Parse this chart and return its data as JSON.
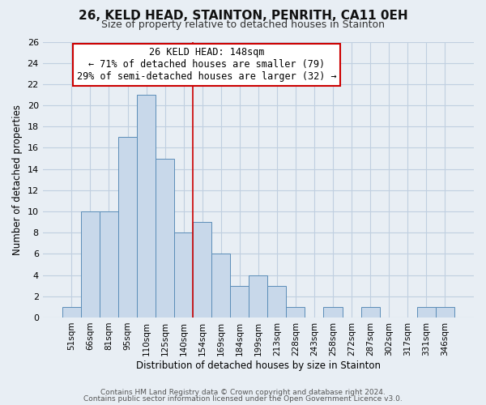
{
  "title": "26, KELD HEAD, STAINTON, PENRITH, CA11 0EH",
  "subtitle": "Size of property relative to detached houses in Stainton",
  "xlabel": "Distribution of detached houses by size in Stainton",
  "ylabel": "Number of detached properties",
  "bar_labels": [
    "51sqm",
    "66sqm",
    "81sqm",
    "95sqm",
    "110sqm",
    "125sqm",
    "140sqm",
    "154sqm",
    "169sqm",
    "184sqm",
    "199sqm",
    "213sqm",
    "228sqm",
    "243sqm",
    "258sqm",
    "272sqm",
    "287sqm",
    "302sqm",
    "317sqm",
    "331sqm",
    "346sqm"
  ],
  "bar_values": [
    1,
    10,
    10,
    17,
    21,
    15,
    8,
    9,
    6,
    3,
    4,
    3,
    1,
    0,
    1,
    0,
    1,
    0,
    0,
    1,
    1
  ],
  "bar_color": "#c8d8ea",
  "bar_edge_color": "#5b8db8",
  "ylim": [
    0,
    26
  ],
  "yticks": [
    0,
    2,
    4,
    6,
    8,
    10,
    12,
    14,
    16,
    18,
    20,
    22,
    24,
    26
  ],
  "annotation_title": "26 KELD HEAD: 148sqm",
  "annotation_line1": "← 71% of detached houses are smaller (79)",
  "annotation_line2": "29% of semi-detached houses are larger (32) →",
  "annotation_box_color": "#ffffff",
  "annotation_box_edge": "#cc0000",
  "marker_line_color": "#cc0000",
  "marker_bar_index": 6,
  "footer_line1": "Contains HM Land Registry data © Crown copyright and database right 2024.",
  "footer_line2": "Contains public sector information licensed under the Open Government Licence v3.0.",
  "background_color": "#e8eef4",
  "plot_background_color": "#e8eef4",
  "grid_color": "#c0cfe0",
  "title_fontsize": 11,
  "subtitle_fontsize": 9,
  "ylabel_fontsize": 8.5,
  "xlabel_fontsize": 8.5,
  "tick_fontsize": 8,
  "xtick_fontsize": 7.5,
  "annotation_fontsize": 8.5,
  "footer_fontsize": 6.5
}
